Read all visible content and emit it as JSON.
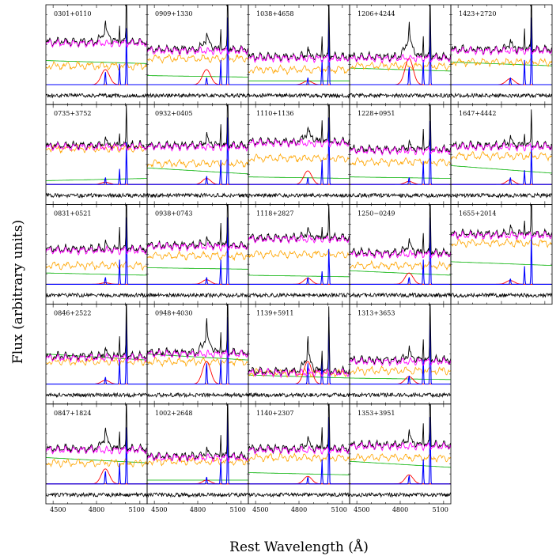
{
  "chart_data": {
    "type": "line",
    "ylabel": "Flux (arbitrary units)",
    "xlabel": "Rest Wavelength (Å)",
    "x_ticks": [
      "4500",
      "4800",
      "5100"
    ],
    "xlim": [
      4450,
      5150
    ],
    "grid": false,
    "series_colors": {
      "observed": "#000000",
      "host_galaxy": "#ff00ff",
      "feii": "#ffa500",
      "continuum": "#00b000",
      "broad_hbeta": "#ff0000",
      "narrow_lines": "#0000ff",
      "fit_total": "#8b0000",
      "residual": "#000000"
    },
    "panels": [
      {
        "id": "0301+0110",
        "row": 0,
        "col": 0,
        "hb": 0.55,
        "o3": 0.8,
        "host": 0.55,
        "fe": 0.25,
        "cont": [
          0.32,
          0.28
        ],
        "broad": 0.2,
        "nb": 0.18
      },
      {
        "id": "0909+1330",
        "row": 0,
        "col": 1,
        "hb": 0.55,
        "o3": 0.95,
        "host": 0.45,
        "fe": 0.35,
        "cont": [
          0.12,
          0.1
        ],
        "broad": 0.2,
        "nb": 0.1
      },
      {
        "id": "1038+4658",
        "row": 0,
        "col": 2,
        "hb": 0.15,
        "o3": 0.95,
        "host": 0.35,
        "fe": 0.2,
        "cont": [
          0.05,
          0.05
        ],
        "broad": 0.05,
        "nb": 0.1
      },
      {
        "id": "1206+4244",
        "row": 0,
        "col": 3,
        "hb": 0.55,
        "o3": 0.95,
        "host": 0.35,
        "fe": 0.25,
        "cont": [
          0.22,
          0.18
        ],
        "broad": 0.35,
        "nb": 0.25
      },
      {
        "id": "1423+2720",
        "row": 0,
        "col": 4,
        "hb": 0.15,
        "o3": 0.95,
        "host": 0.45,
        "fe": 0.3,
        "cont": [
          0.3,
          0.25
        ],
        "broad": 0.08,
        "nb": 0.1
      },
      {
        "id": "0735+3752",
        "row": 1,
        "col": 0,
        "hb": 0.1,
        "o3": 0.6,
        "host": 0.5,
        "fe": 0.48,
        "cont": [
          0.05,
          0.08
        ],
        "broad": 0.03,
        "nb": 0.1
      },
      {
        "id": "0932+0405",
        "row": 1,
        "col": 1,
        "hb": 0.25,
        "o3": 0.95,
        "host": 0.5,
        "fe": 0.28,
        "cont": [
          0.22,
          0.14
        ],
        "broad": 0.08,
        "nb": 0.12
      },
      {
        "id": "1110+1136",
        "row": 1,
        "col": 2,
        "hb": 0.25,
        "o3": 0.95,
        "host": 0.55,
        "fe": 0.35,
        "cont": [
          0.1,
          0.08
        ],
        "broad": 0.18,
        "nb": 0.1
      },
      {
        "id": "1228+0951",
        "row": 1,
        "col": 3,
        "hb": 0.2,
        "o3": 0.9,
        "host": 0.45,
        "fe": 0.3,
        "cont": [
          0.1,
          0.08
        ],
        "broad": 0.04,
        "nb": 0.1
      },
      {
        "id": "1647+4442",
        "row": 1,
        "col": 4,
        "hb": 0.15,
        "o3": 0.55,
        "host": 0.5,
        "fe": 0.38,
        "cont": [
          0.25,
          0.15
        ],
        "broad": 0.06,
        "nb": 0.1
      },
      {
        "id": "0831+0521",
        "row": 2,
        "col": 0,
        "hb": 0.3,
        "o3": 0.95,
        "host": 0.45,
        "fe": 0.25,
        "cont": [
          0.15,
          0.12
        ],
        "broad": 0.02,
        "nb": 0.1
      },
      {
        "id": "0938+0743",
        "row": 2,
        "col": 1,
        "hb": 0.2,
        "o3": 0.95,
        "host": 0.5,
        "fe": 0.38,
        "cont": [
          0.22,
          0.2
        ],
        "broad": 0.06,
        "nb": 0.1
      },
      {
        "id": "1118+2827",
        "row": 2,
        "col": 2,
        "hb": 0.2,
        "o3": 0.5,
        "host": 0.6,
        "fe": 0.4,
        "cont": [
          0.12,
          0.1
        ],
        "broad": 0.08,
        "nb": 0.1
      },
      {
        "id": "1250−0249",
        "row": 2,
        "col": 3,
        "hb": 0.35,
        "o3": 0.95,
        "host": 0.4,
        "fe": 0.25,
        "cont": [
          0.18,
          0.12
        ],
        "broad": 0.15,
        "nb": 0.1
      },
      {
        "id": "1655+2014",
        "row": 2,
        "col": 4,
        "hb": 0.15,
        "o3": 0.7,
        "host": 0.65,
        "fe": 0.55,
        "cont": [
          0.3,
          0.25
        ],
        "broad": 0.05,
        "nb": 0.08
      },
      {
        "id": "0846+2522",
        "row": 3,
        "col": 0,
        "hb": 0.25,
        "o3": 0.95,
        "host": 0.35,
        "fe": 0.3,
        "cont": [
          0.4,
          0.32
        ],
        "broad": 0.05,
        "nb": 0.1
      },
      {
        "id": "0948+4030",
        "row": 3,
        "col": 1,
        "hb": 0.75,
        "o3": 0.95,
        "host": 0.4,
        "fe": 0.3,
        "cont": [
          0.4,
          0.32
        ],
        "broad": 0.3,
        "nb": 0.3
      },
      {
        "id": "1139+5911",
        "row": 3,
        "col": 2,
        "hb": 0.55,
        "o3": 0.95,
        "host": 0.15,
        "fe": 0.15,
        "cont": [
          0.12,
          0.08
        ],
        "broad": 0.3,
        "nb": 0.3
      },
      {
        "id": "1313+3653",
        "row": 3,
        "col": 3,
        "hb": 0.35,
        "o3": 0.95,
        "host": 0.3,
        "fe": 0.18,
        "cont": [
          0.08,
          0.06
        ],
        "broad": 0.1,
        "nb": 0.12
      },
      {
        "id": "0847+1824",
        "row": 4,
        "col": 0,
        "hb": 0.55,
        "o3": 0.8,
        "host": 0.45,
        "fe": 0.28,
        "cont": [
          0.35,
          0.28
        ],
        "broad": 0.2,
        "nb": 0.18
      },
      {
        "id": "1002+2648",
        "row": 4,
        "col": 1,
        "hb": 0.25,
        "o3": 0.95,
        "host": 0.35,
        "fe": 0.3,
        "cont": [
          0.05,
          0.05
        ],
        "broad": 0.05,
        "nb": 0.1
      },
      {
        "id": "1140+2307",
        "row": 4,
        "col": 2,
        "hb": 0.25,
        "o3": 0.95,
        "host": 0.45,
        "fe": 0.35,
        "cont": [
          0.15,
          0.12
        ],
        "broad": 0.1,
        "nb": 0.1
      },
      {
        "id": "1353+3951",
        "row": 4,
        "col": 3,
        "hb": 0.45,
        "o3": 0.95,
        "host": 0.5,
        "fe": 0.35,
        "cont": [
          0.3,
          0.22
        ],
        "broad": 0.12,
        "nb": 0.12
      }
    ]
  }
}
